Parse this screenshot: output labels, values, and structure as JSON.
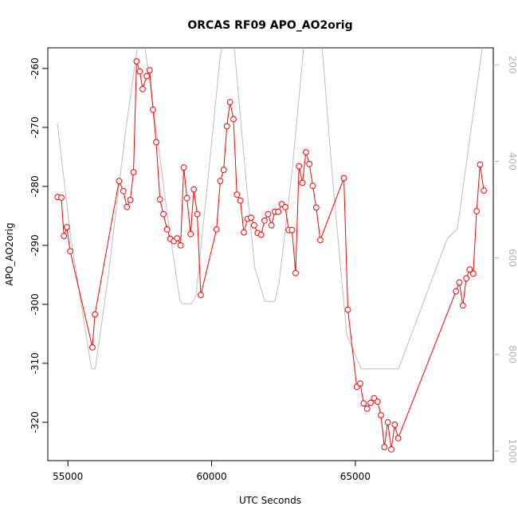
{
  "chart_data": {
    "type": "line",
    "title": "ORCAS RF09 APO_AO2orig",
    "xlabel": "UTC Seconds",
    "ylabel": "APO_AO2orig",
    "xlim": [
      54300,
      69800
    ],
    "ylim": [
      -326.5,
      -256.5
    ],
    "y2lim": [
      1020,
      165
    ],
    "x_ticks": [
      55000,
      60000,
      65000
    ],
    "x_tick_labels": [
      "55000",
      "60000",
      "65000"
    ],
    "y_ticks": [
      -260,
      -270,
      -280,
      -290,
      -300,
      -310,
      -320
    ],
    "y_tick_labels": [
      "-260",
      "-270",
      "-280",
      "-290",
      "-300",
      "-310",
      "-320"
    ],
    "y2_ticks": [
      200,
      400,
      600,
      800,
      1000
    ],
    "y2_tick_labels": [
      "200",
      "400",
      "600",
      "800",
      "1000"
    ],
    "series": [
      {
        "role": "primary",
        "color": "#ff0000",
        "marker": "open-circle",
        "points": [
          [
            54640,
            -281.8
          ],
          [
            54770,
            -281.9
          ],
          [
            54860,
            -288.4
          ],
          [
            54960,
            -286.9
          ],
          [
            55080,
            -291.0
          ],
          [
            55850,
            -307.3
          ],
          [
            55940,
            -301.7
          ],
          [
            56780,
            -279.1
          ],
          [
            56930,
            -280.8
          ],
          [
            57050,
            -283.5
          ],
          [
            57170,
            -282.3
          ],
          [
            57280,
            -277.6
          ],
          [
            57390,
            -258.8
          ],
          [
            57500,
            -260.5
          ],
          [
            57600,
            -263.5
          ],
          [
            57740,
            -261.3
          ],
          [
            57840,
            -260.3
          ],
          [
            57960,
            -267.0
          ],
          [
            58070,
            -272.5
          ],
          [
            58200,
            -282.2
          ],
          [
            58320,
            -284.7
          ],
          [
            58450,
            -287.3
          ],
          [
            58560,
            -288.9
          ],
          [
            58690,
            -289.3
          ],
          [
            58800,
            -288.8
          ],
          [
            58920,
            -290.0
          ],
          [
            59030,
            -276.8
          ],
          [
            59140,
            -282.0
          ],
          [
            59270,
            -288.1
          ],
          [
            59380,
            -280.5
          ],
          [
            59500,
            -284.7
          ],
          [
            59620,
            -298.4
          ],
          [
            60170,
            -287.3
          ],
          [
            60300,
            -279.1
          ],
          [
            60420,
            -277.2
          ],
          [
            60530,
            -269.8
          ],
          [
            60640,
            -265.7
          ],
          [
            60760,
            -268.6
          ],
          [
            60880,
            -281.4
          ],
          [
            61000,
            -282.4
          ],
          [
            61120,
            -287.8
          ],
          [
            61250,
            -285.5
          ],
          [
            61370,
            -285.3
          ],
          [
            61480,
            -286.6
          ],
          [
            61600,
            -287.9
          ],
          [
            61720,
            -288.2
          ],
          [
            61840,
            -285.8
          ],
          [
            61960,
            -284.7
          ],
          [
            62080,
            -286.6
          ],
          [
            62200,
            -284.3
          ],
          [
            62320,
            -284.3
          ],
          [
            62440,
            -283.0
          ],
          [
            62560,
            -283.5
          ],
          [
            62680,
            -287.4
          ],
          [
            62800,
            -287.4
          ],
          [
            62920,
            -294.7
          ],
          [
            63040,
            -276.6
          ],
          [
            63160,
            -279.4
          ],
          [
            63280,
            -274.2
          ],
          [
            63400,
            -276.2
          ],
          [
            63520,
            -279.9
          ],
          [
            63640,
            -283.6
          ],
          [
            63780,
            -289.1
          ],
          [
            64600,
            -278.6
          ],
          [
            64740,
            -300.9
          ],
          [
            65050,
            -314.0
          ],
          [
            65170,
            -313.4
          ],
          [
            65290,
            -316.8
          ],
          [
            65410,
            -317.7
          ],
          [
            65530,
            -316.7
          ],
          [
            65650,
            -315.9
          ],
          [
            65770,
            -316.5
          ],
          [
            65890,
            -318.8
          ],
          [
            66010,
            -324.2
          ],
          [
            66130,
            -320.0
          ],
          [
            66250,
            -324.6
          ],
          [
            66370,
            -320.4
          ],
          [
            66490,
            -322.7
          ],
          [
            68500,
            -297.8
          ],
          [
            68620,
            -296.3
          ],
          [
            68740,
            -300.2
          ],
          [
            68860,
            -295.6
          ],
          [
            68980,
            -294.1
          ],
          [
            69100,
            -294.8
          ],
          [
            69220,
            -284.2
          ],
          [
            69340,
            -276.3
          ],
          [
            69470,
            -280.7
          ]
        ]
      },
      {
        "role": "secondary (right axis)",
        "color": "#bebebe",
        "marker": "none",
        "points": [
          [
            54630,
            320
          ],
          [
            55100,
            560
          ],
          [
            55820,
            830
          ],
          [
            55950,
            830
          ],
          [
            56400,
            640
          ],
          [
            57000,
            340
          ],
          [
            57450,
            150
          ],
          [
            57600,
            130
          ],
          [
            58000,
            300
          ],
          [
            58500,
            530
          ],
          [
            58900,
            690
          ],
          [
            59000,
            695
          ],
          [
            59300,
            695
          ],
          [
            59450,
            680
          ],
          [
            59900,
            420
          ],
          [
            60300,
            180
          ],
          [
            60500,
            130
          ],
          [
            60750,
            140
          ],
          [
            61200,
            440
          ],
          [
            61500,
            620
          ],
          [
            61850,
            690
          ],
          [
            62200,
            690
          ],
          [
            62350,
            650
          ],
          [
            62800,
            420
          ],
          [
            63100,
            230
          ],
          [
            63250,
            130
          ],
          [
            63800,
            130
          ],
          [
            64200,
            430
          ],
          [
            64700,
            760
          ],
          [
            65200,
            830
          ],
          [
            66500,
            830
          ],
          [
            68200,
            560
          ],
          [
            68550,
            540
          ],
          [
            69450,
            150
          ]
        ]
      }
    ]
  }
}
